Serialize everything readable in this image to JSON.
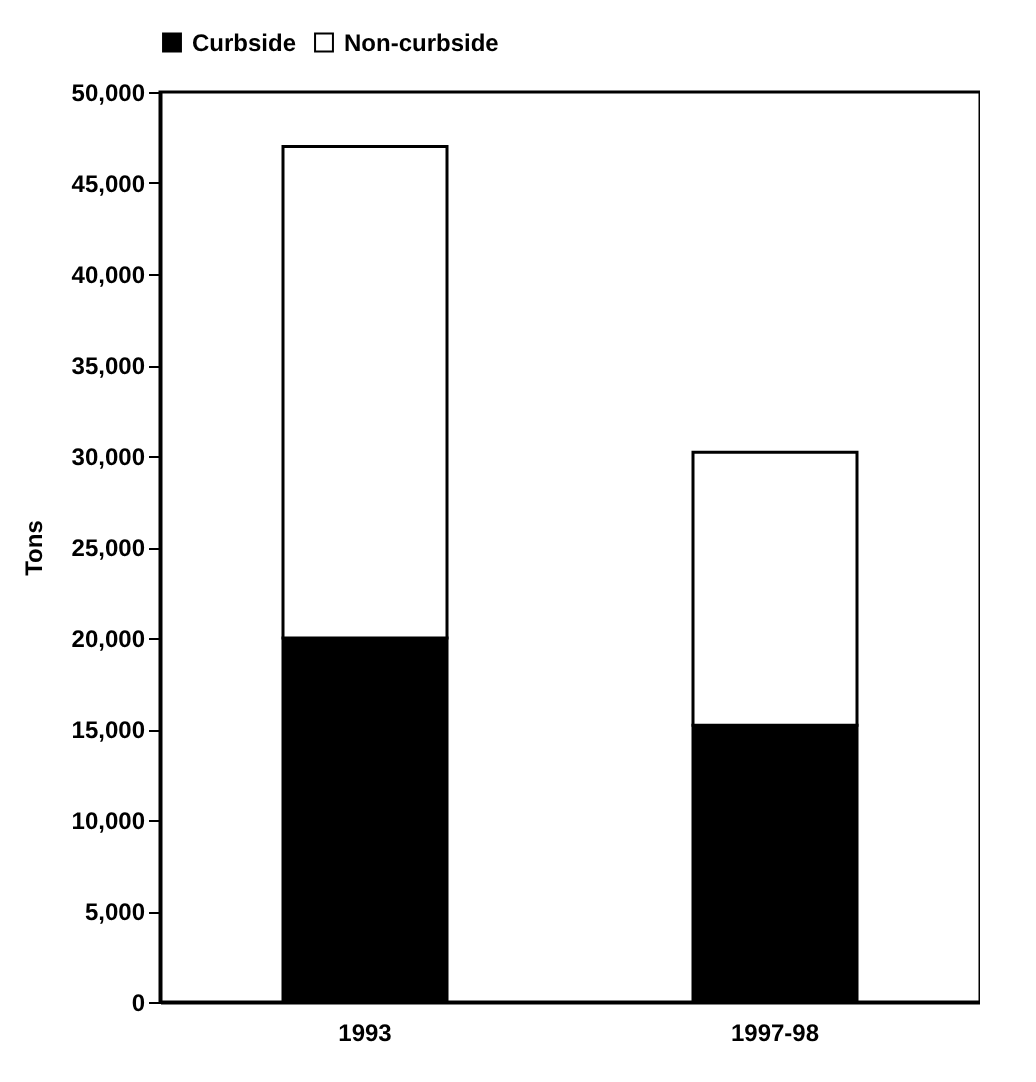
{
  "chart_data": {
    "type": "bar",
    "stacked": true,
    "ylabel": "Tons",
    "categories": [
      "1993",
      "1997-98"
    ],
    "series": [
      {
        "name": "Curbside",
        "color": "#000000",
        "values": [
          20000,
          15200
        ]
      },
      {
        "name": "Non-curbside",
        "color": "#ffffff",
        "values": [
          27000,
          15000
        ]
      }
    ],
    "ylim": [
      0,
      50000
    ],
    "yticks": [
      0,
      {
        "value": 5000,
        "label": "5,000"
      },
      {
        "value": 10000,
        "label": "10,000"
      },
      {
        "value": 15000,
        "label": "15,000"
      },
      {
        "value": 20000,
        "label": "20,000"
      },
      {
        "value": 25000,
        "label": "25,000"
      },
      {
        "value": 30000,
        "label": "30,000"
      },
      {
        "value": 35000,
        "label": "35,000"
      },
      {
        "value": 40000,
        "label": "40,000"
      },
      {
        "value": 45000,
        "label": "45,000"
      },
      {
        "value": 50000,
        "label": "50,000"
      }
    ],
    "legend": "top",
    "grid": false
  }
}
